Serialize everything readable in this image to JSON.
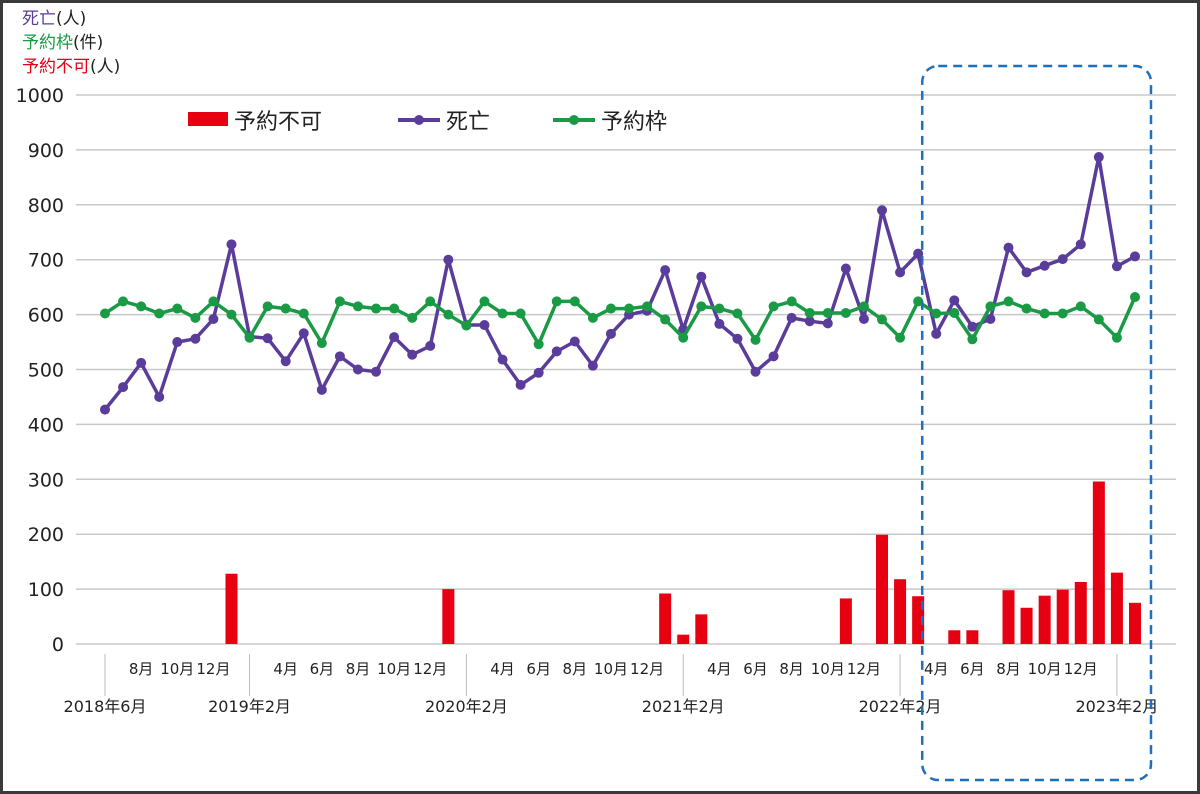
{
  "chart_data": {
    "type": "bar+line",
    "unit_labels": [
      {
        "name": "死亡",
        "unit": "(人)",
        "color": "#5a3d9a"
      },
      {
        "name": "予約枠",
        "unit": "(件)",
        "color": "#1a9a45"
      },
      {
        "name": "予約不可",
        "unit": "(人)",
        "color": "#e60012"
      }
    ],
    "legend": [
      "予約不可",
      "死亡",
      "予約枠"
    ],
    "legend_placement": "top-left",
    "ylim": [
      0,
      1000
    ],
    "yticks": [
      "0",
      "100",
      "200",
      "300",
      "400",
      "500",
      "600",
      "700",
      "800",
      "900",
      "1000"
    ],
    "grid": true,
    "x_months": [
      "2018-06",
      "2018-07",
      "2018-08",
      "2018-09",
      "2018-10",
      "2018-11",
      "2018-12",
      "2019-01",
      "2019-02",
      "2019-03",
      "2019-04",
      "2019-05",
      "2019-06",
      "2019-07",
      "2019-08",
      "2019-09",
      "2019-10",
      "2019-11",
      "2019-12",
      "2020-01",
      "2020-02",
      "2020-03",
      "2020-04",
      "2020-05",
      "2020-06",
      "2020-07",
      "2020-08",
      "2020-09",
      "2020-10",
      "2020-11",
      "2020-12",
      "2021-01",
      "2021-02",
      "2021-03",
      "2021-04",
      "2021-05",
      "2021-06",
      "2021-07",
      "2021-08",
      "2021-09",
      "2021-10",
      "2021-11",
      "2021-12",
      "2022-01",
      "2022-02",
      "2022-03",
      "2022-04",
      "2022-05",
      "2022-06",
      "2022-07",
      "2022-08",
      "2022-09",
      "2022-10",
      "2022-11",
      "2022-12",
      "2023-01",
      "2023-02",
      "2023-03"
    ],
    "xtick_labels": [
      "2018年6月",
      "8月",
      "10月",
      "12月",
      "2019年2月",
      "4月",
      "6月",
      "8月",
      "10月",
      "12月",
      "2020年2月",
      "4月",
      "6月",
      "8月",
      "10月",
      "12月",
      "2021年2月",
      "4月",
      "6月",
      "8月",
      "10月",
      "12月",
      "2022年2月",
      "4月",
      "6月",
      "8月",
      "10月",
      "12月",
      "2023年2月"
    ],
    "series": [
      {
        "name": "予約不可",
        "type": "bar",
        "color": "#e60012",
        "values": [
          0,
          0,
          0,
          0,
          0,
          0,
          0,
          128,
          0,
          0,
          0,
          0,
          0,
          0,
          0,
          0,
          0,
          0,
          0,
          100,
          0,
          0,
          0,
          0,
          0,
          0,
          0,
          0,
          0,
          0,
          0,
          92,
          17,
          54,
          0,
          0,
          0,
          0,
          0,
          0,
          0,
          83,
          0,
          199,
          118,
          87,
          0,
          25,
          25,
          0,
          98,
          66,
          88,
          99,
          113,
          296,
          130,
          75
        ]
      },
      {
        "name": "死亡",
        "type": "line",
        "color": "#5a3d9a",
        "values": [
          427,
          468,
          512,
          450,
          550,
          556,
          592,
          728,
          560,
          557,
          515,
          566,
          463,
          524,
          500,
          496,
          559,
          527,
          543,
          700,
          581,
          581,
          518,
          472,
          494,
          533,
          551,
          507,
          565,
          600,
          607,
          681,
          573,
          669,
          583,
          556,
          496,
          524,
          594,
          588,
          584,
          684,
          592,
          790,
          677,
          711,
          565,
          626,
          578,
          592,
          722,
          677,
          689,
          701,
          728,
          887,
          688,
          706
        ]
      },
      {
        "name": "予約枠",
        "type": "line",
        "color": "#1a9a45",
        "values": [
          602,
          624,
          615,
          602,
          611,
          594,
          624,
          600,
          558,
          615,
          611,
          602,
          548,
          624,
          615,
          611,
          611,
          594,
          624,
          600,
          580,
          624,
          602,
          602,
          546,
          624,
          624,
          594,
          611,
          611,
          615,
          591,
          558,
          615,
          611,
          602,
          554,
          615,
          624,
          603,
          603,
          603,
          615,
          591,
          558,
          624,
          602,
          603,
          555,
          615,
          624,
          611,
          602,
          602,
          615,
          591,
          558,
          632
        ]
      }
    ],
    "highlight_range": [
      "2022-04",
      "2023-03"
    ]
  }
}
